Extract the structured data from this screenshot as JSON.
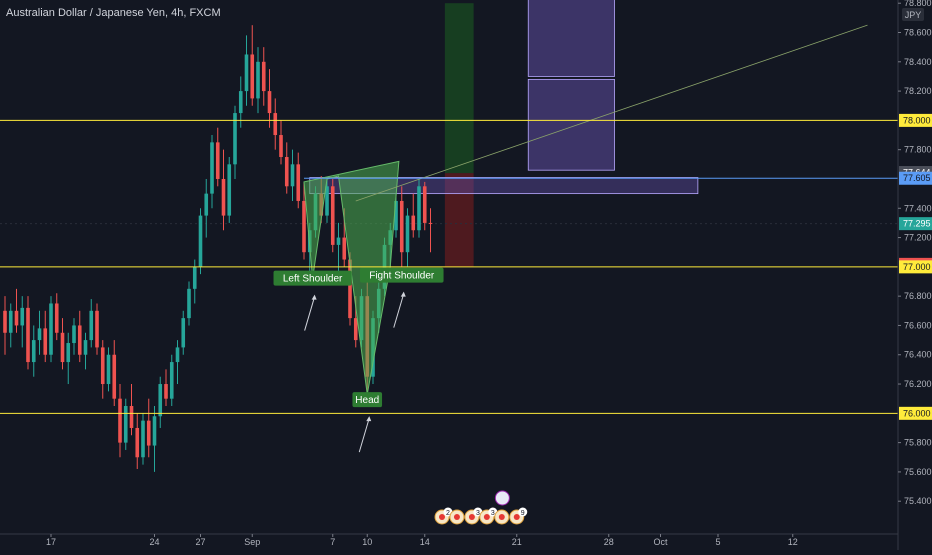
{
  "header": {
    "title": "Australian Dollar / Japanese Yen, 4h, FXCM"
  },
  "colors": {
    "background": "#131722",
    "bull": "#26a69a",
    "bear": "#ef5350",
    "support_line": "#ffeb3b",
    "resistance_line": "#5b9cf6",
    "pattern_fill": "#4caf50",
    "zone_fill": "#5e4ca0",
    "target_green": "#1b5e20",
    "stop_red": "#7f1d1d"
  },
  "chart_data": {
    "type": "candlestick",
    "symbol": "Australian Dollar / Japanese Yen",
    "interval": "4h",
    "source": "FXCM",
    "currency_badge": "JPY",
    "y_axis": {
      "range": [
        75.3,
        78.8
      ],
      "ticks": [
        "78.800",
        "78.600",
        "78.400",
        "78.200",
        "77.800",
        "77.400",
        "77.200",
        "76.800",
        "76.600",
        "76.400",
        "76.200",
        "75.800",
        "75.600",
        "75.400"
      ],
      "tick_values": [
        78.8,
        78.6,
        78.4,
        78.2,
        77.8,
        77.4,
        77.2,
        76.8,
        76.6,
        76.4,
        76.2,
        75.8,
        75.6,
        75.4
      ]
    },
    "x_axis": {
      "ticks": [
        "17",
        "24",
        "27",
        "Sep",
        "7",
        "10",
        "14",
        "21",
        "28",
        "Oct",
        "5",
        "12"
      ],
      "tick_bars": [
        8,
        26,
        34,
        43,
        57,
        63,
        73,
        89,
        105,
        114,
        124,
        137
      ]
    },
    "price_labels": [
      {
        "value": 78.0,
        "text": "78.000",
        "style": "yellow"
      },
      {
        "value": 77.644,
        "text": "77.644",
        "style": "gray"
      },
      {
        "value": 77.605,
        "text": "77.605",
        "style": "blue"
      },
      {
        "value": 77.295,
        "text": "77.295",
        "style": "teal"
      },
      {
        "value": 77.017,
        "text": "77.017",
        "style": "red"
      },
      {
        "value": 77.0,
        "text": "77.000",
        "style": "yellow"
      },
      {
        "value": 76.0,
        "text": "76.000",
        "style": "yellow"
      }
    ],
    "horizontal_lines": [
      {
        "value": 78.0,
        "color": "#ffeb3b"
      },
      {
        "value": 77.0,
        "color": "#ffeb3b"
      },
      {
        "value": 76.0,
        "color": "#ffeb3b"
      },
      {
        "value": 77.605,
        "color": "#5b9cf6"
      }
    ],
    "annotations": [
      {
        "text": "Left Shoulder",
        "bar": 53.5,
        "value": 76.92
      },
      {
        "text": "Fight Shoulder",
        "bar": 69,
        "value": 76.94
      },
      {
        "text": "Head",
        "bar": 63,
        "value": 76.09
      }
    ],
    "pattern": {
      "label": "head and shoulders",
      "points": [
        [
          52,
          77.58
        ],
        [
          53.5,
          76.92
        ],
        [
          56,
          77.6
        ],
        [
          58,
          77.62
        ],
        [
          63,
          76.13
        ],
        [
          67,
          77.0
        ],
        [
          68.5,
          77.72
        ]
      ]
    },
    "trendline": {
      "from": [
        61,
        77.45
      ],
      "to": [
        150,
        78.65
      ]
    },
    "zones": [
      {
        "x0": 91,
        "x1": 106,
        "y0": 78.3,
        "y1": 78.9
      },
      {
        "x0": 91,
        "x1": 106,
        "y0": 77.66,
        "y1": 78.28
      },
      {
        "x0": 53,
        "x1": 120.5,
        "y0": 77.5,
        "y1": 77.61
      }
    ],
    "risk_box": {
      "x0": 76.5,
      "x1": 81.5,
      "entry": 77.64,
      "target": 78.8,
      "stop": 77.0
    },
    "candles": [
      [
        0,
        76.7,
        76.8,
        76.4,
        76.55
      ],
      [
        1,
        76.55,
        76.75,
        76.45,
        76.7
      ],
      [
        2,
        76.7,
        76.85,
        76.55,
        76.6
      ],
      [
        3,
        76.6,
        76.8,
        76.45,
        76.72
      ],
      [
        4,
        76.72,
        76.8,
        76.3,
        76.35
      ],
      [
        5,
        76.35,
        76.6,
        76.25,
        76.5
      ],
      [
        6,
        76.5,
        76.7,
        76.4,
        76.58
      ],
      [
        7,
        76.58,
        76.7,
        76.35,
        76.4
      ],
      [
        8,
        76.4,
        76.8,
        76.35,
        76.75
      ],
      [
        9,
        76.75,
        76.82,
        76.5,
        76.55
      ],
      [
        10,
        76.55,
        76.65,
        76.3,
        76.35
      ],
      [
        11,
        76.35,
        76.55,
        76.2,
        76.48
      ],
      [
        12,
        76.48,
        76.65,
        76.4,
        76.6
      ],
      [
        13,
        76.6,
        76.7,
        76.35,
        76.4
      ],
      [
        14,
        76.4,
        76.55,
        76.3,
        76.5
      ],
      [
        15,
        76.5,
        76.78,
        76.45,
        76.7
      ],
      [
        16,
        76.7,
        76.75,
        76.4,
        76.45
      ],
      [
        17,
        76.45,
        76.5,
        76.1,
        76.2
      ],
      [
        18,
        76.2,
        76.45,
        76.15,
        76.4
      ],
      [
        19,
        76.4,
        76.5,
        76.05,
        76.1
      ],
      [
        20,
        76.1,
        76.2,
        75.7,
        75.8
      ],
      [
        21,
        75.8,
        76.1,
        75.75,
        76.05
      ],
      [
        22,
        76.05,
        76.2,
        75.85,
        75.9
      ],
      [
        23,
        75.9,
        76.0,
        75.62,
        75.7
      ],
      [
        24,
        75.7,
        76.0,
        75.65,
        75.95
      ],
      [
        25,
        75.95,
        76.1,
        75.7,
        75.78
      ],
      [
        26,
        75.78,
        76.05,
        75.6,
        75.98
      ],
      [
        27,
        75.98,
        76.25,
        75.9,
        76.2
      ],
      [
        28,
        76.2,
        76.3,
        76.05,
        76.1
      ],
      [
        29,
        76.1,
        76.4,
        76.05,
        76.35
      ],
      [
        30,
        76.35,
        76.5,
        76.2,
        76.45
      ],
      [
        31,
        76.45,
        76.7,
        76.4,
        76.65
      ],
      [
        32,
        76.65,
        76.9,
        76.6,
        76.85
      ],
      [
        33,
        76.85,
        77.05,
        76.75,
        77.0
      ],
      [
        34,
        77.0,
        77.4,
        76.95,
        77.35
      ],
      [
        35,
        77.35,
        77.6,
        77.2,
        77.5
      ],
      [
        36,
        77.5,
        77.9,
        77.4,
        77.85
      ],
      [
        37,
        77.85,
        77.95,
        77.55,
        77.6
      ],
      [
        38,
        77.6,
        77.8,
        77.25,
        77.35
      ],
      [
        39,
        77.35,
        77.75,
        77.3,
        77.7
      ],
      [
        40,
        77.7,
        78.1,
        77.6,
        78.05
      ],
      [
        41,
        78.05,
        78.3,
        77.95,
        78.2
      ],
      [
        42,
        78.2,
        78.58,
        78.1,
        78.45
      ],
      [
        43,
        78.45,
        78.65,
        78.1,
        78.15
      ],
      [
        44,
        78.15,
        78.5,
        78.05,
        78.4
      ],
      [
        45,
        78.4,
        78.5,
        78.1,
        78.2
      ],
      [
        46,
        78.2,
        78.35,
        77.95,
        78.05
      ],
      [
        47,
        78.05,
        78.15,
        77.8,
        77.9
      ],
      [
        48,
        77.9,
        78.0,
        77.7,
        77.75
      ],
      [
        49,
        77.75,
        77.85,
        77.5,
        77.55
      ],
      [
        50,
        77.55,
        77.8,
        77.45,
        77.7
      ],
      [
        51,
        77.7,
        77.78,
        77.4,
        77.45
      ],
      [
        52,
        77.45,
        77.58,
        77.05,
        77.1
      ],
      [
        53,
        77.1,
        77.3,
        76.92,
        77.25
      ],
      [
        54,
        77.25,
        77.55,
        77.2,
        77.5
      ],
      [
        55,
        77.5,
        77.62,
        77.3,
        77.35
      ],
      [
        56,
        77.35,
        77.6,
        77.3,
        77.55
      ],
      [
        57,
        77.55,
        77.6,
        77.1,
        77.15
      ],
      [
        58,
        77.15,
        77.3,
        76.95,
        77.2
      ],
      [
        59,
        77.2,
        77.4,
        77.0,
        77.05
      ],
      [
        60,
        77.05,
        77.1,
        76.6,
        76.65
      ],
      [
        61,
        76.65,
        76.8,
        76.45,
        76.5
      ],
      [
        62,
        76.5,
        76.85,
        76.45,
        76.8
      ],
      [
        63,
        76.8,
        76.9,
        76.13,
        76.25
      ],
      [
        64,
        76.25,
        76.7,
        76.2,
        76.65
      ],
      [
        65,
        76.65,
        76.9,
        76.55,
        76.85
      ],
      [
        66,
        76.85,
        77.2,
        76.8,
        77.15
      ],
      [
        67,
        77.15,
        77.3,
        77.0,
        77.25
      ],
      [
        68,
        77.25,
        77.5,
        77.2,
        77.45
      ],
      [
        69,
        77.45,
        77.55,
        77.0,
        77.1
      ],
      [
        70,
        77.1,
        77.4,
        77.0,
        77.35
      ],
      [
        71,
        77.35,
        77.5,
        77.2,
        77.25
      ],
      [
        72,
        77.25,
        77.6,
        77.2,
        77.55
      ],
      [
        73,
        77.55,
        77.58,
        77.25,
        77.3
      ],
      [
        74,
        77.3,
        77.4,
        77.1,
        77.295
      ]
    ]
  }
}
